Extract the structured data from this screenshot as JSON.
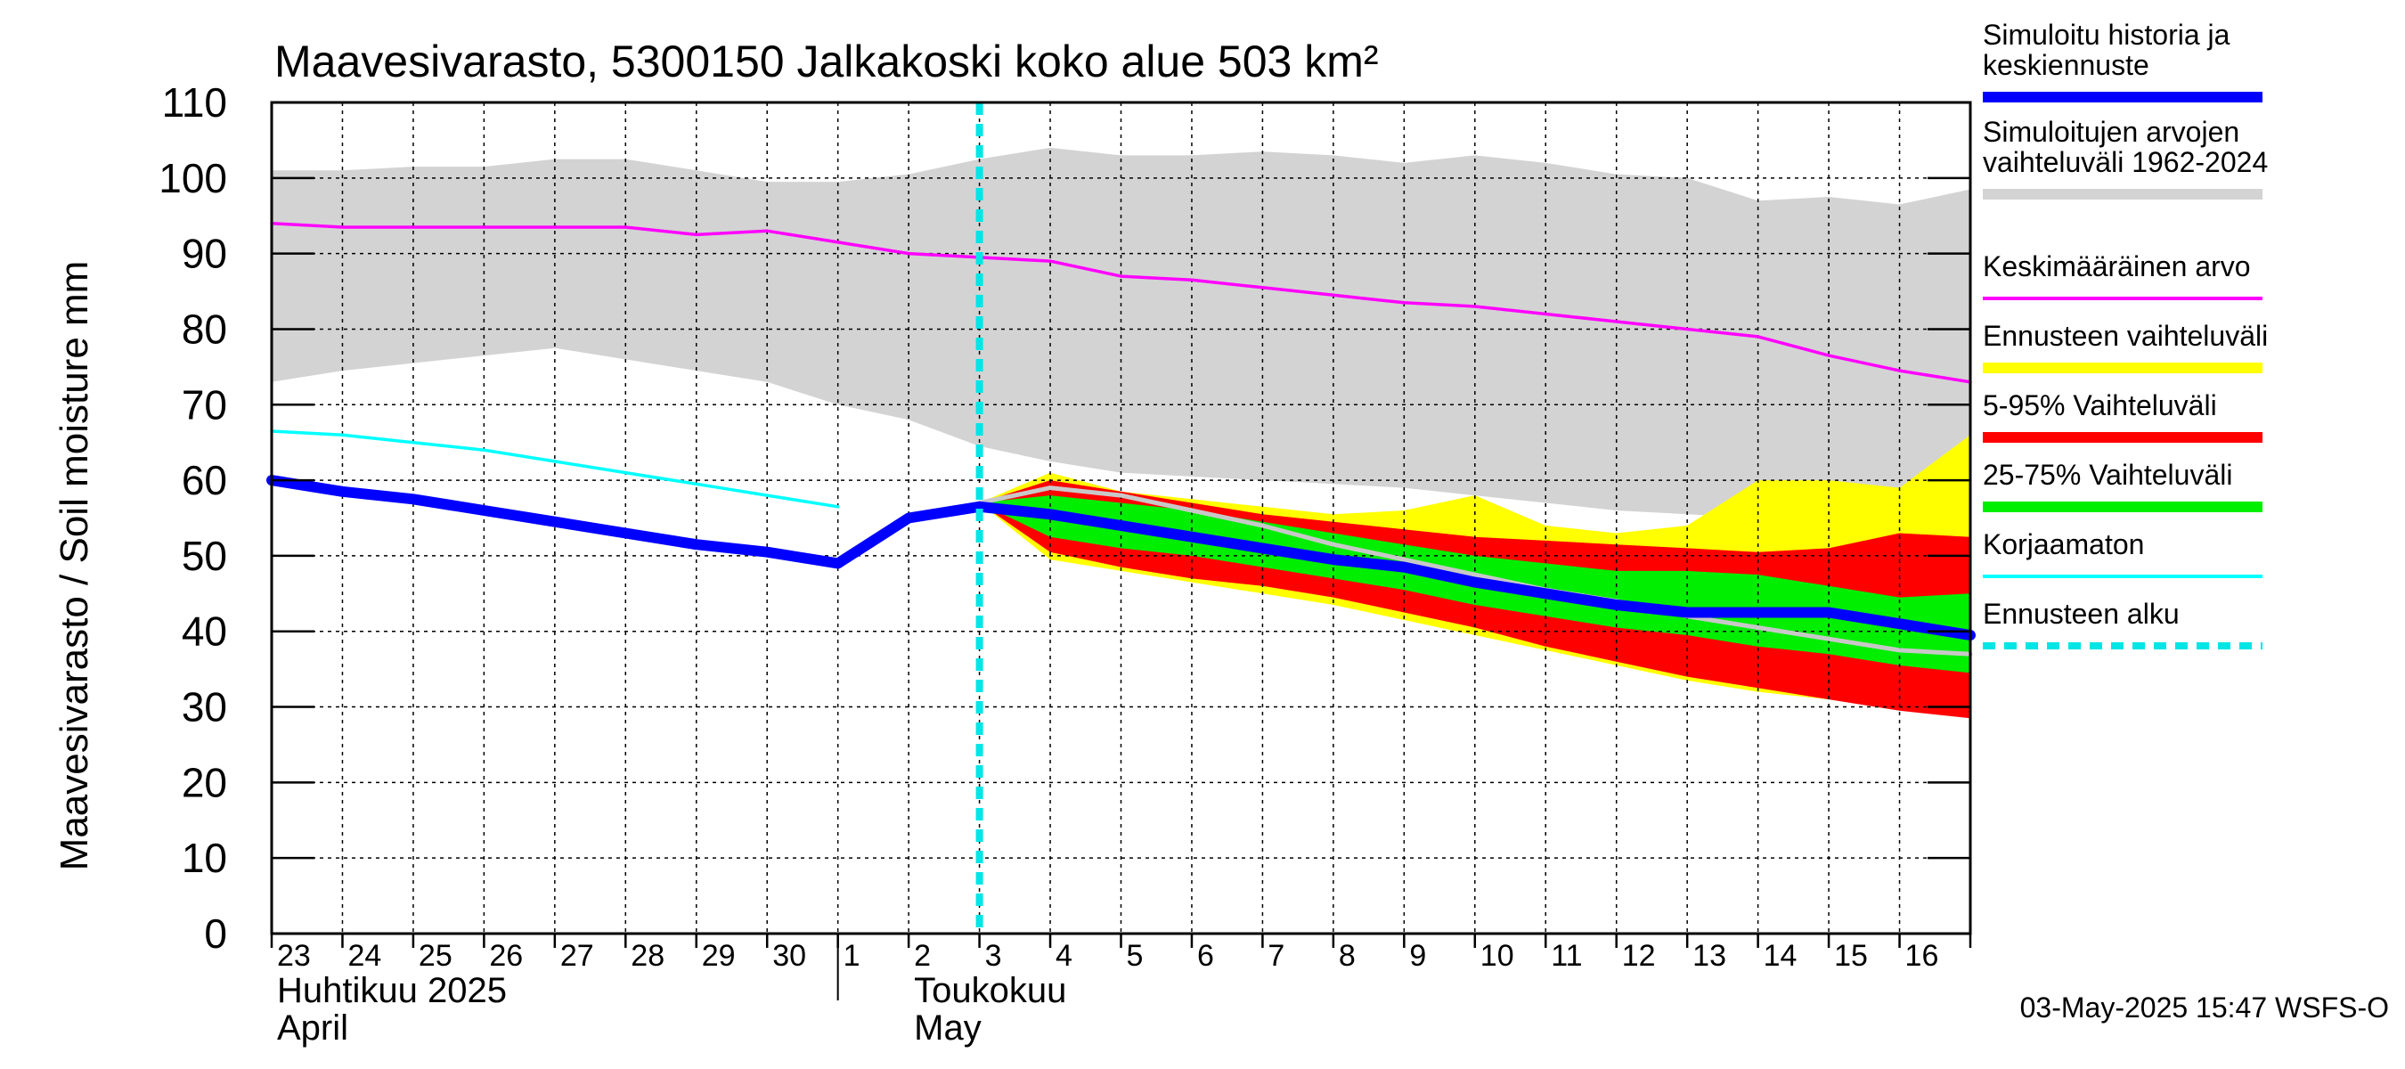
{
  "chart_data": {
    "type": "area",
    "title": "Maavesivarasto, 5300150 Jalkakoski koko alue 503 km²",
    "ylabel": "Maavesivarasto / Soil moisture   mm",
    "ylim": [
      0,
      110
    ],
    "yticks": [
      0,
      10,
      20,
      30,
      40,
      50,
      60,
      70,
      80,
      90,
      100,
      110
    ],
    "xlim": [
      0,
      24
    ],
    "day_labels": [
      "23",
      "24",
      "25",
      "26",
      "27",
      "28",
      "29",
      "30",
      "1",
      "2",
      "3",
      "4",
      "5",
      "6",
      "7",
      "8",
      "9",
      "10",
      "11",
      "12",
      "13",
      "14",
      "15",
      "16"
    ],
    "month_labels": [
      {
        "line1": "Huhtikuu  2025",
        "line2": "April",
        "at_day": 0
      },
      {
        "line1": "Toukokuu",
        "line2": "May",
        "at_day": 9
      }
    ],
    "month_divider_day": 8,
    "forecast_start_day": 10,
    "timestamp": "03-May-2025 15:47 WSFS-O",
    "series": [
      {
        "name": "Simuloitujen arvojen vaihteluväli 1962-2024",
        "kind": "band",
        "color": "#d3d3d3",
        "x": [
          0,
          1,
          2,
          3,
          4,
          5,
          6,
          7,
          8,
          9,
          10,
          11,
          12,
          13,
          14,
          15,
          16,
          17,
          18,
          19,
          20,
          21,
          22,
          23,
          24
        ],
        "lower": [
          73,
          74.5,
          75.5,
          76.5,
          77.5,
          76,
          74.5,
          73,
          70,
          68,
          64.5,
          62.5,
          61,
          60.5,
          60,
          59.5,
          59,
          58,
          57,
          56,
          55.5,
          55,
          54.5,
          54,
          54
        ],
        "upper": [
          101,
          101,
          101.5,
          101.5,
          102.5,
          102.5,
          101,
          99.5,
          99.5,
          100.5,
          102.5,
          104,
          103,
          103,
          103.5,
          103,
          102,
          103,
          102,
          100.5,
          100,
          97,
          97.5,
          96.5,
          98.5
        ]
      },
      {
        "name": "Ennusteen vaihteluväli",
        "kind": "band",
        "color": "#ffff00",
        "x": [
          10,
          11,
          12,
          13,
          14,
          15,
          16,
          17,
          18,
          19,
          20,
          21,
          22,
          23,
          24
        ],
        "lower": [
          57,
          49.5,
          48,
          46.5,
          45,
          43.5,
          41.5,
          39.5,
          37.5,
          35.5,
          33.5,
          32,
          31,
          30,
          29.5
        ],
        "upper": [
          57,
          61,
          58.5,
          57.5,
          56.5,
          55.5,
          56,
          58,
          54,
          53,
          54,
          60,
          60,
          59,
          66
        ]
      },
      {
        "name": "5-95% Vaihteluväli",
        "kind": "band",
        "color": "#ff0000",
        "x": [
          10,
          11,
          12,
          13,
          14,
          15,
          16,
          17,
          18,
          19,
          20,
          21,
          22,
          23,
          24
        ],
        "lower": [
          57,
          50.5,
          48.5,
          47,
          46,
          44.5,
          42.5,
          40.5,
          38,
          36,
          34,
          32.5,
          31,
          29.5,
          28.5
        ],
        "upper": [
          57,
          60,
          58.5,
          57,
          55.5,
          54.5,
          53.5,
          52.5,
          52,
          51.5,
          51,
          50.5,
          51,
          53,
          52.5
        ]
      },
      {
        "name": "25-75% Vaihteluväli",
        "kind": "band",
        "color": "#00ee00",
        "x": [
          10,
          11,
          12,
          13,
          14,
          15,
          16,
          17,
          18,
          19,
          20,
          21,
          22,
          23,
          24
        ],
        "lower": [
          57,
          52.5,
          51,
          50,
          48.5,
          47,
          45.5,
          43.5,
          42,
          40.5,
          39.5,
          38,
          37,
          35.5,
          34.5
        ],
        "upper": [
          57,
          58,
          57,
          56,
          54.5,
          53,
          51.5,
          50,
          49,
          48,
          48,
          47.5,
          46,
          44.5,
          45
        ]
      },
      {
        "name": "Keskimääräinen arvo",
        "kind": "line",
        "color": "#ff00ff",
        "width": 3.5,
        "x": [
          0,
          1,
          2,
          3,
          4,
          5,
          6,
          7,
          8,
          9,
          10,
          11,
          12,
          13,
          14,
          15,
          16,
          17,
          18,
          19,
          20,
          21,
          22,
          23,
          24
        ],
        "y": [
          94,
          93.5,
          93.5,
          93.5,
          93.5,
          93.5,
          92.5,
          93,
          91.5,
          90,
          89.5,
          89,
          87,
          86.5,
          85.5,
          84.5,
          83.5,
          83,
          82,
          81,
          80,
          79,
          76.5,
          74.5,
          73
        ]
      },
      {
        "name": "Korjaamaton",
        "kind": "line",
        "color": "#00ffff",
        "width": 3.5,
        "x": [
          0,
          1,
          2,
          3,
          4,
          5,
          6,
          7,
          8
        ],
        "y": [
          66.5,
          66,
          65,
          64,
          62.5,
          61,
          59.5,
          58,
          56.5
        ]
      },
      {
        "name": "median forecast",
        "kind": "line",
        "color": "#c8c8c8",
        "width": 5,
        "legend": false,
        "x": [
          10,
          11,
          12,
          13,
          14,
          15,
          16,
          17,
          18,
          19,
          20,
          21,
          22,
          23,
          24
        ],
        "y": [
          57,
          59,
          58,
          56,
          54,
          51.5,
          49.5,
          47.5,
          45.5,
          44,
          42,
          40.5,
          39,
          37.5,
          37
        ]
      },
      {
        "name": "Simuloitu historia ja keskiennuste",
        "kind": "line",
        "color": "#0000ff",
        "width": 12,
        "x": [
          0,
          1,
          2,
          3,
          4,
          5,
          6,
          7,
          8,
          9,
          10,
          11,
          12,
          13,
          14,
          15,
          16,
          17,
          18,
          19,
          20,
          21,
          22,
          23,
          24
        ],
        "y": [
          60,
          58.5,
          57.5,
          56,
          54.5,
          53,
          51.5,
          50.5,
          49,
          55,
          56.5,
          55.5,
          54,
          52.5,
          51,
          49.5,
          48.5,
          46.5,
          45,
          43.5,
          42.5,
          42.5,
          42.5,
          41,
          39.5
        ]
      }
    ]
  },
  "legend": [
    {
      "lines": [
        "Simuloitu historia ja",
        "keskiennuste"
      ],
      "color": "#0000ff",
      "style": "thick"
    },
    {
      "lines": [
        "Simuloitujen arvojen",
        "vaihteluväli 1962-2024"
      ],
      "color": "#d3d3d3",
      "style": "thick"
    },
    {
      "lines": [
        "Keskimääräinen arvo"
      ],
      "color": "#ff00ff",
      "style": "thin"
    },
    {
      "lines": [
        "Ennusteen vaihteluväli"
      ],
      "color": "#ffff00",
      "style": "thick"
    },
    {
      "lines": [
        "5-95% Vaihteluväli"
      ],
      "color": "#ff0000",
      "style": "thick"
    },
    {
      "lines": [
        "25-75% Vaihteluväli"
      ],
      "color": "#00ee00",
      "style": "thick"
    },
    {
      "lines": [
        "Korjaamaton"
      ],
      "color": "#00ffff",
      "style": "thin"
    },
    {
      "lines": [
        "Ennusteen alku"
      ],
      "color": "#00e5e5",
      "style": "dashed"
    }
  ]
}
